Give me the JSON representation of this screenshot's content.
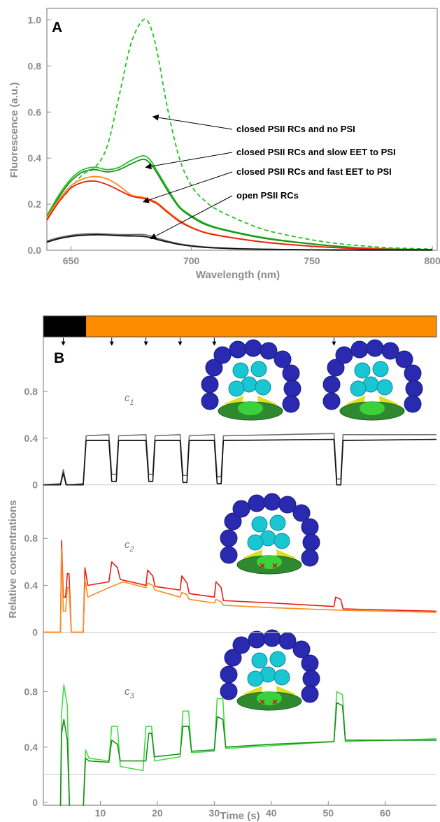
{
  "colors": {
    "green": "#22c322",
    "green_dark": "#1a8f1a",
    "green_light": "#44dd44",
    "red": "#e81e14",
    "orange": "#ff8a1c",
    "black": "#111111",
    "gray": "#6e6e6e",
    "axis_label": "#8c8c8c",
    "light_bar_dark": "#000000",
    "light_bar_orange": "#ff8c00"
  },
  "chart_data": [
    {
      "type": "line",
      "panel_label": "A",
      "xlabel": "Wavelength (nm)",
      "ylabel": "Fluorescence (a.u.)",
      "xlim": [
        640,
        802
      ],
      "ylim": [
        0,
        1.05
      ],
      "xticks": [
        650,
        700,
        750,
        800
      ],
      "yticks": [
        0.0,
        0.2,
        0.4,
        0.6,
        0.8,
        1.0
      ],
      "ytick_labels": [
        "0.0",
        "0.2",
        "0.4",
        "0.6",
        "0.8",
        "1.0"
      ],
      "grid": false,
      "x": [
        640,
        645,
        650,
        655,
        660,
        665,
        670,
        675,
        680,
        683,
        686,
        690,
        695,
        700,
        705,
        710,
        720,
        730,
        740,
        750,
        760,
        770,
        780,
        790,
        800
      ],
      "series": [
        {
          "key": "no_psi",
          "dash": true,
          "color_key": "green",
          "values": [
            0.15,
            0.21,
            0.27,
            0.33,
            0.36,
            0.45,
            0.67,
            0.9,
            1.0,
            0.97,
            0.85,
            0.62,
            0.4,
            0.28,
            0.22,
            0.18,
            0.13,
            0.09,
            0.065,
            0.045,
            0.03,
            0.02,
            0.012,
            0.008,
            0.005
          ]
        },
        {
          "key": "slow_eet_1",
          "dash": false,
          "color_key": "green",
          "values": [
            0.15,
            0.24,
            0.31,
            0.35,
            0.36,
            0.35,
            0.36,
            0.39,
            0.41,
            0.39,
            0.34,
            0.27,
            0.19,
            0.15,
            0.12,
            0.1,
            0.075,
            0.055,
            0.04,
            0.028,
            0.018,
            0.011,
            0.007,
            0.004,
            0.003
          ]
        },
        {
          "key": "slow_eet_2",
          "dash": false,
          "color_key": "green_dark",
          "values": [
            0.14,
            0.23,
            0.3,
            0.34,
            0.35,
            0.34,
            0.35,
            0.375,
            0.395,
            0.375,
            0.33,
            0.26,
            0.185,
            0.145,
            0.115,
            0.097,
            0.072,
            0.052,
            0.038,
            0.027,
            0.017,
            0.01,
            0.006,
            0.004,
            0.003
          ]
        },
        {
          "key": "fast_eet_1",
          "dash": false,
          "color_key": "orange",
          "values": [
            0.14,
            0.22,
            0.28,
            0.31,
            0.32,
            0.31,
            0.28,
            0.24,
            0.23,
            0.22,
            0.205,
            0.17,
            0.13,
            0.1,
            0.08,
            0.068,
            0.05,
            0.036,
            0.026,
            0.018,
            0.012,
            0.008,
            0.005,
            0.003,
            0.002
          ]
        },
        {
          "key": "fast_eet_2",
          "dash": false,
          "color_key": "red",
          "values": [
            0.13,
            0.21,
            0.27,
            0.295,
            0.3,
            0.285,
            0.26,
            0.235,
            0.225,
            0.215,
            0.2,
            0.165,
            0.125,
            0.098,
            0.078,
            0.066,
            0.049,
            0.035,
            0.025,
            0.017,
            0.011,
            0.007,
            0.004,
            0.003,
            0.002
          ]
        },
        {
          "key": "open_1",
          "dash": false,
          "color_key": "gray",
          "values": [
            0.04,
            0.055,
            0.065,
            0.07,
            0.072,
            0.07,
            0.068,
            0.068,
            0.068,
            0.062,
            0.052,
            0.04,
            0.028,
            0.02,
            0.015,
            0.011,
            0.007,
            0.005,
            0.003,
            0.002,
            0.002,
            0.001,
            0.001,
            0.001,
            0.001
          ]
        },
        {
          "key": "open_2",
          "dash": false,
          "color_key": "black",
          "values": [
            0.035,
            0.05,
            0.06,
            0.065,
            0.067,
            0.066,
            0.063,
            0.062,
            0.06,
            0.055,
            0.046,
            0.036,
            0.025,
            0.018,
            0.013,
            0.01,
            0.006,
            0.004,
            0.003,
            0.002,
            0.001,
            0.001,
            0.001,
            0.001,
            0.001
          ]
        }
      ],
      "annotations": [
        {
          "text": "closed PSII RCs and no PSI",
          "arrow_to": [
            684,
            0.58
          ]
        },
        {
          "text": "closed PSII RCs and slow EET to PSI",
          "arrow_to": [
            681,
            0.36
          ]
        },
        {
          "text": "closed PSII RCs and fast EET to PSI",
          "arrow_to": [
            680,
            0.21
          ]
        },
        {
          "text": "open PSII RCs",
          "arrow_to": [
            683,
            0.05
          ]
        }
      ]
    },
    {
      "type": "line",
      "panel_label": "B",
      "xlabel": "Time (s)",
      "ylabel": "Relative concentrations",
      "xlim": [
        0,
        69
      ],
      "xticks": [
        10,
        20,
        30,
        40,
        50,
        60
      ],
      "grid": false,
      "light_bar": {
        "dark_until": 7.5
      },
      "flash_times": [
        3.5,
        12,
        18,
        24,
        30,
        51
      ],
      "subplots": [
        {
          "label": "c",
          "label_sub": "1",
          "ylim": [
            -0.05,
            0.98
          ],
          "yticks": [
            0,
            0.4,
            0.8
          ],
          "ytick_labels": [
            "0",
            "0.4",
            "0.8"
          ],
          "baseline": 0,
          "series": [
            {
              "color_key": "gray",
              "x": [
                0,
                3,
                3.5,
                4,
                4.3,
                7,
                7.5,
                11.5,
                12,
                12.8,
                13.2,
                18,
                18.5,
                19.2,
                19.6,
                24,
                24.5,
                25.2,
                25.6,
                30,
                30.5,
                31.2,
                31.6,
                51,
                51.5,
                52.2,
                52.6,
                69
              ],
              "values": [
                0,
                0.01,
                0.13,
                0.01,
                0,
                0.01,
                0.42,
                0.43,
                0.09,
                0.09,
                0.42,
                0.43,
                0.09,
                0.09,
                0.42,
                0.43,
                0.08,
                0.08,
                0.42,
                0.43,
                0.07,
                0.07,
                0.42,
                0.44,
                0.05,
                0.05,
                0.43,
                0.43
              ]
            },
            {
              "color_key": "black",
              "x": [
                0,
                3,
                3.5,
                4,
                4.3,
                7,
                7.5,
                11.5,
                12,
                12.8,
                13.2,
                18,
                18.5,
                19.2,
                19.6,
                24,
                24.5,
                25.2,
                25.6,
                30,
                30.5,
                31.2,
                31.6,
                51,
                51.5,
                52.2,
                52.6,
                69
              ],
              "values": [
                0,
                0.0,
                0.1,
                0.0,
                0,
                0.0,
                0.38,
                0.38,
                0.03,
                0.03,
                0.38,
                0.38,
                0.03,
                0.03,
                0.38,
                0.38,
                0.02,
                0.02,
                0.38,
                0.38,
                0.01,
                0.01,
                0.38,
                0.39,
                0.0,
                0.0,
                0.38,
                0.39
              ]
            }
          ]
        },
        {
          "label": "c",
          "label_sub": "2",
          "ylim": [
            -0.05,
            0.98
          ],
          "yticks": [
            0,
            0.4,
            0.8
          ],
          "ytick_labels": [
            "0",
            "0.4",
            "0.8"
          ],
          "baseline": 0,
          "series": [
            {
              "color_key": "red",
              "x": [
                0,
                3,
                3.2,
                3.5,
                3.9,
                4.2,
                4.5,
                4.9,
                7,
                7.3,
                7.8,
                11.5,
                12,
                13,
                13.5,
                18,
                18.3,
                19.2,
                19.6,
                24,
                24.3,
                25.2,
                25.6,
                30,
                30.3,
                31.2,
                31.6,
                40,
                51,
                51.3,
                52.2,
                52.6,
                60,
                69
              ],
              "values": [
                0,
                0,
                0.78,
                0.3,
                0.3,
                0.5,
                0.5,
                0,
                0,
                0.55,
                0.4,
                0.43,
                0.6,
                0.55,
                0.45,
                0.4,
                0.53,
                0.48,
                0.39,
                0.36,
                0.48,
                0.42,
                0.33,
                0.3,
                0.43,
                0.38,
                0.27,
                0.25,
                0.22,
                0.3,
                0.28,
                0.2,
                0.19,
                0.18
              ]
            },
            {
              "color_key": "orange",
              "x": [
                0,
                3,
                3.2,
                3.5,
                3.9,
                4.2,
                4.5,
                4.9,
                7,
                7.3,
                7.8,
                11.5,
                14,
                18,
                18.3,
                19.2,
                19.6,
                24,
                24.3,
                25.2,
                25.6,
                30,
                30.3,
                31.2,
                31.6,
                40,
                51,
                69
              ],
              "values": [
                0,
                0,
                0.72,
                0.18,
                0.18,
                0.38,
                0.38,
                0,
                0,
                0.45,
                0.3,
                0.38,
                0.43,
                0.38,
                0.42,
                0.4,
                0.36,
                0.3,
                0.34,
                0.32,
                0.28,
                0.25,
                0.28,
                0.26,
                0.23,
                0.21,
                0.19,
                0.17
              ]
            }
          ]
        },
        {
          "label": "c",
          "label_sub": "3",
          "ylim": [
            -0.02,
            1.0
          ],
          "yticks": [
            0,
            0.4,
            0.8
          ],
          "ytick_labels": [
            "0",
            "0.4",
            "0.8"
          ],
          "baseline": 0.2,
          "series": [
            {
              "color_key": "green_light",
              "x": [
                0,
                3,
                3.2,
                3.6,
                4.2,
                4.6,
                7,
                7.4,
                8,
                11.5,
                12,
                13,
                13.5,
                17.5,
                18,
                19,
                19.5,
                24,
                24.5,
                25.5,
                26,
                30,
                30.5,
                31.5,
                32,
                40,
                51,
                51.5,
                52.5,
                53,
                69
              ],
              "values": [
                -0.05,
                -0.05,
                0.65,
                0.85,
                0.7,
                -0.05,
                -0.05,
                0.38,
                0.32,
                0.3,
                0.55,
                0.55,
                0.26,
                0.23,
                0.55,
                0.55,
                0.3,
                0.33,
                0.66,
                0.66,
                0.36,
                0.37,
                0.75,
                0.75,
                0.39,
                0.41,
                0.44,
                0.8,
                0.78,
                0.44,
                0.46
              ]
            },
            {
              "color_key": "green_dark",
              "x": [
                0,
                3,
                3.2,
                3.6,
                4.2,
                4.6,
                7,
                7.4,
                8,
                11.5,
                12,
                13,
                13.5,
                18,
                18.5,
                19,
                19.5,
                24,
                24.5,
                25.5,
                26,
                30,
                30.5,
                31.5,
                32,
                40,
                51,
                51.5,
                52.5,
                53,
                69
              ],
              "values": [
                -0.05,
                -0.05,
                0.5,
                0.6,
                0.45,
                -0.05,
                -0.05,
                0.32,
                0.3,
                0.29,
                0.45,
                0.42,
                0.3,
                0.3,
                0.5,
                0.5,
                0.33,
                0.35,
                0.55,
                0.55,
                0.37,
                0.38,
                0.62,
                0.6,
                0.4,
                0.42,
                0.44,
                0.72,
                0.7,
                0.45,
                0.45
              ]
            }
          ]
        }
      ]
    }
  ]
}
